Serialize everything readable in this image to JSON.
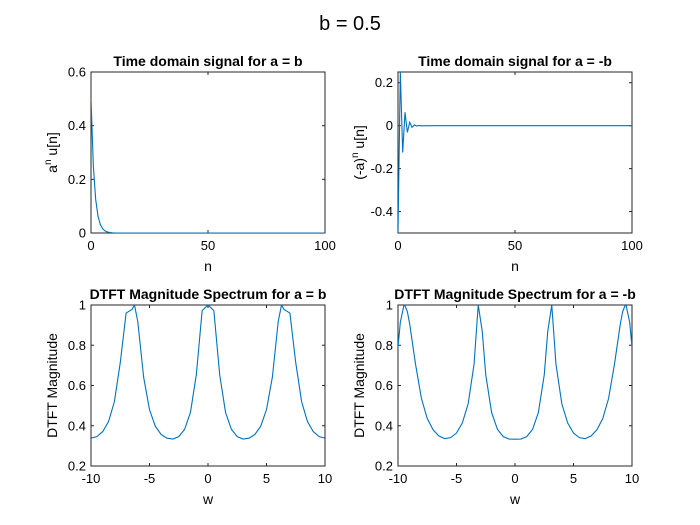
{
  "suptitle": "b = 0.5",
  "colors": {
    "series": "#0072BD",
    "axis": "#262626"
  },
  "chart_data": [
    {
      "type": "line",
      "title": "Time domain signal for a = b",
      "xlabel": "n",
      "ylabel_base": "a",
      "ylabel_sup": "n",
      "ylabel_rest": " u[n]",
      "xlim": [
        0,
        100
      ],
      "ylim": [
        0,
        0.6
      ],
      "xticks": [
        0,
        50,
        100
      ],
      "xtick_labels": [
        "0",
        "50",
        "100"
      ],
      "yticks": [
        0,
        0.2,
        0.4,
        0.6
      ],
      "ytick_labels": [
        "0",
        "0.2",
        "0.4",
        "0.6"
      ],
      "x": [
        0,
        1,
        2,
        3,
        4,
        5,
        6,
        7,
        8,
        9,
        10,
        15,
        20,
        30,
        40,
        50,
        60,
        70,
        80,
        90,
        100
      ],
      "y": [
        0.5,
        0.25,
        0.125,
        0.0625,
        0.03125,
        0.015625,
        0.0078125,
        0.0039,
        0.00195,
        0.00098,
        0.00049,
        0,
        0,
        0,
        0,
        0,
        0,
        0,
        0,
        0,
        0
      ]
    },
    {
      "type": "line",
      "title": "Time domain signal for a = -b",
      "xlabel": "n",
      "ylabel_base": "(-a)",
      "ylabel_sup": "n",
      "ylabel_rest": " u[n]",
      "xlim": [
        0,
        100
      ],
      "ylim": [
        -0.5,
        0.25
      ],
      "xticks": [
        0,
        50,
        100
      ],
      "xtick_labels": [
        "0",
        "50",
        "100"
      ],
      "yticks": [
        -0.4,
        -0.2,
        0,
        0.2
      ],
      "ytick_labels": [
        "-0.4",
        "-0.2",
        "0",
        "0.2"
      ],
      "x": [
        0,
        1,
        2,
        3,
        4,
        5,
        6,
        7,
        8,
        9,
        10,
        15,
        20,
        30,
        40,
        50,
        60,
        70,
        80,
        90,
        100
      ],
      "y": [
        -0.5,
        0.25,
        -0.125,
        0.0625,
        -0.03125,
        0.015625,
        -0.0078125,
        0.0039,
        -0.00195,
        0.00098,
        -0.00049,
        0,
        0,
        0,
        0,
        0,
        0,
        0,
        0,
        0,
        0
      ]
    },
    {
      "type": "line",
      "title": "DTFT Magnitude Spectrum for a = b",
      "xlabel": "w",
      "ylabel": "DTFT Magnitude",
      "xlim": [
        -10,
        10
      ],
      "ylim": [
        0.2,
        1
      ],
      "xticks": [
        -10,
        -5,
        0,
        5,
        10
      ],
      "xtick_labels": [
        "-10",
        "-5",
        "0",
        "5",
        "10"
      ],
      "yticks": [
        0.2,
        0.4,
        0.6,
        0.8,
        1
      ],
      "ytick_labels": [
        "0.2",
        "0.4",
        "0.6",
        "0.8",
        "1"
      ],
      "x": [
        -10,
        -9.5,
        -9,
        -8.5,
        -8,
        -7.5,
        -7,
        -6.5,
        -6.283,
        -6,
        -5.5,
        -5,
        -4.5,
        -4,
        -3.5,
        -3,
        -2.5,
        -2,
        -1.5,
        -1,
        -0.5,
        0,
        0.5,
        1,
        1.5,
        2,
        2.5,
        3,
        3.5,
        4,
        4.5,
        5,
        5.5,
        6,
        6.283,
        6.5,
        7,
        7.5,
        8,
        8.5,
        9,
        9.5,
        10
      ],
      "y": [
        0.339,
        0.346,
        0.371,
        0.421,
        0.52,
        0.713,
        0.96,
        0.978,
        1.0,
        0.917,
        0.641,
        0.48,
        0.397,
        0.356,
        0.338,
        0.334,
        0.346,
        0.382,
        0.466,
        0.653,
        0.972,
        1.0,
        0.972,
        0.653,
        0.466,
        0.382,
        0.346,
        0.334,
        0.338,
        0.356,
        0.397,
        0.48,
        0.641,
        0.917,
        1.0,
        0.978,
        0.96,
        0.713,
        0.52,
        0.421,
        0.371,
        0.346,
        0.339
      ]
    },
    {
      "type": "line",
      "title": "DTFT Magnitude Spectrum for a = -b",
      "xlabel": "w",
      "ylabel": "DTFT Magnitude",
      "xlim": [
        -10,
        10
      ],
      "ylim": [
        0.2,
        1
      ],
      "xticks": [
        -10,
        -5,
        0,
        5,
        10
      ],
      "xtick_labels": [
        "-10",
        "-5",
        "0",
        "5",
        "10"
      ],
      "yticks": [
        0.2,
        0.4,
        0.6,
        0.8,
        1
      ],
      "ytick_labels": [
        "0.2",
        "0.4",
        "0.6",
        "0.8",
        "1"
      ],
      "x": [
        -10,
        -9.8,
        -9.5,
        -9.425,
        -9.2,
        -9,
        -8.5,
        -8,
        -7.5,
        -7,
        -6.5,
        -6,
        -5.5,
        -5,
        -4.5,
        -4,
        -3.5,
        -3.142,
        -2.8,
        -2.5,
        -2,
        -1.5,
        -1,
        -0.5,
        0,
        0.5,
        1,
        1.5,
        2,
        2.5,
        2.8,
        3.142,
        3.5,
        4,
        4.5,
        5,
        5.5,
        6,
        6.5,
        7,
        7.5,
        8,
        8.5,
        9,
        9.2,
        9.425,
        9.5,
        9.8,
        10
      ],
      "y": [
        0.79,
        0.915,
        0.997,
        1.0,
        0.967,
        0.905,
        0.705,
        0.536,
        0.436,
        0.38,
        0.349,
        0.336,
        0.341,
        0.364,
        0.414,
        0.51,
        0.706,
        1.0,
        0.869,
        0.653,
        0.466,
        0.382,
        0.346,
        0.334,
        0.333,
        0.334,
        0.346,
        0.382,
        0.466,
        0.653,
        0.869,
        1.0,
        0.706,
        0.51,
        0.414,
        0.364,
        0.341,
        0.336,
        0.349,
        0.38,
        0.436,
        0.536,
        0.705,
        0.905,
        0.967,
        1.0,
        0.997,
        0.915,
        0.79
      ]
    }
  ]
}
